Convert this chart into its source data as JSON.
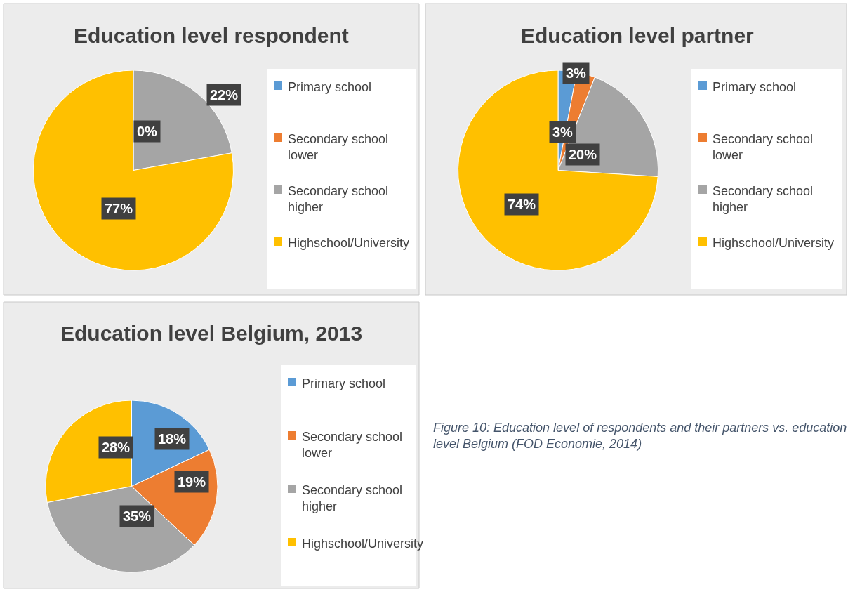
{
  "chart_data": [
    {
      "type": "pie",
      "title": "Education level respondent",
      "categories": [
        "Primary school",
        "Secondary school lower",
        "Secondary school higher",
        "Highschool/University"
      ],
      "values": [
        0,
        null,
        22,
        77
      ],
      "value_labels": [
        "0%",
        null,
        "22%",
        "77%"
      ],
      "colors": [
        "#5b9bd5",
        "#ed7d31",
        "#a5a5a5",
        "#ffc000"
      ],
      "legend": "right"
    },
    {
      "type": "pie",
      "title": "Education level partner",
      "categories": [
        "Primary school",
        "Secondary school lower",
        "Secondary school higher",
        "Highschool/University"
      ],
      "values": [
        3,
        3,
        20,
        74
      ],
      "value_labels": [
        "3%",
        "3%",
        "20%",
        "74%"
      ],
      "colors": [
        "#5b9bd5",
        "#ed7d31",
        "#a5a5a5",
        "#ffc000"
      ],
      "legend": "right"
    },
    {
      "type": "pie",
      "title": "Education level Belgium, 2013",
      "categories": [
        "Primary school",
        "Secondary school lower",
        "Secondary school higher",
        "Highschool/University"
      ],
      "values": [
        18,
        19,
        35,
        28
      ],
      "value_labels": [
        "18%",
        "19%",
        "35%",
        "28%"
      ],
      "colors": [
        "#5b9bd5",
        "#ed7d31",
        "#a5a5a5",
        "#ffc000"
      ],
      "legend": "right",
      "annotations": [
        "Figure 10: Education level of respondents and their partners vs. education level Belgium (FOD Economie, 2014)"
      ]
    }
  ]
}
